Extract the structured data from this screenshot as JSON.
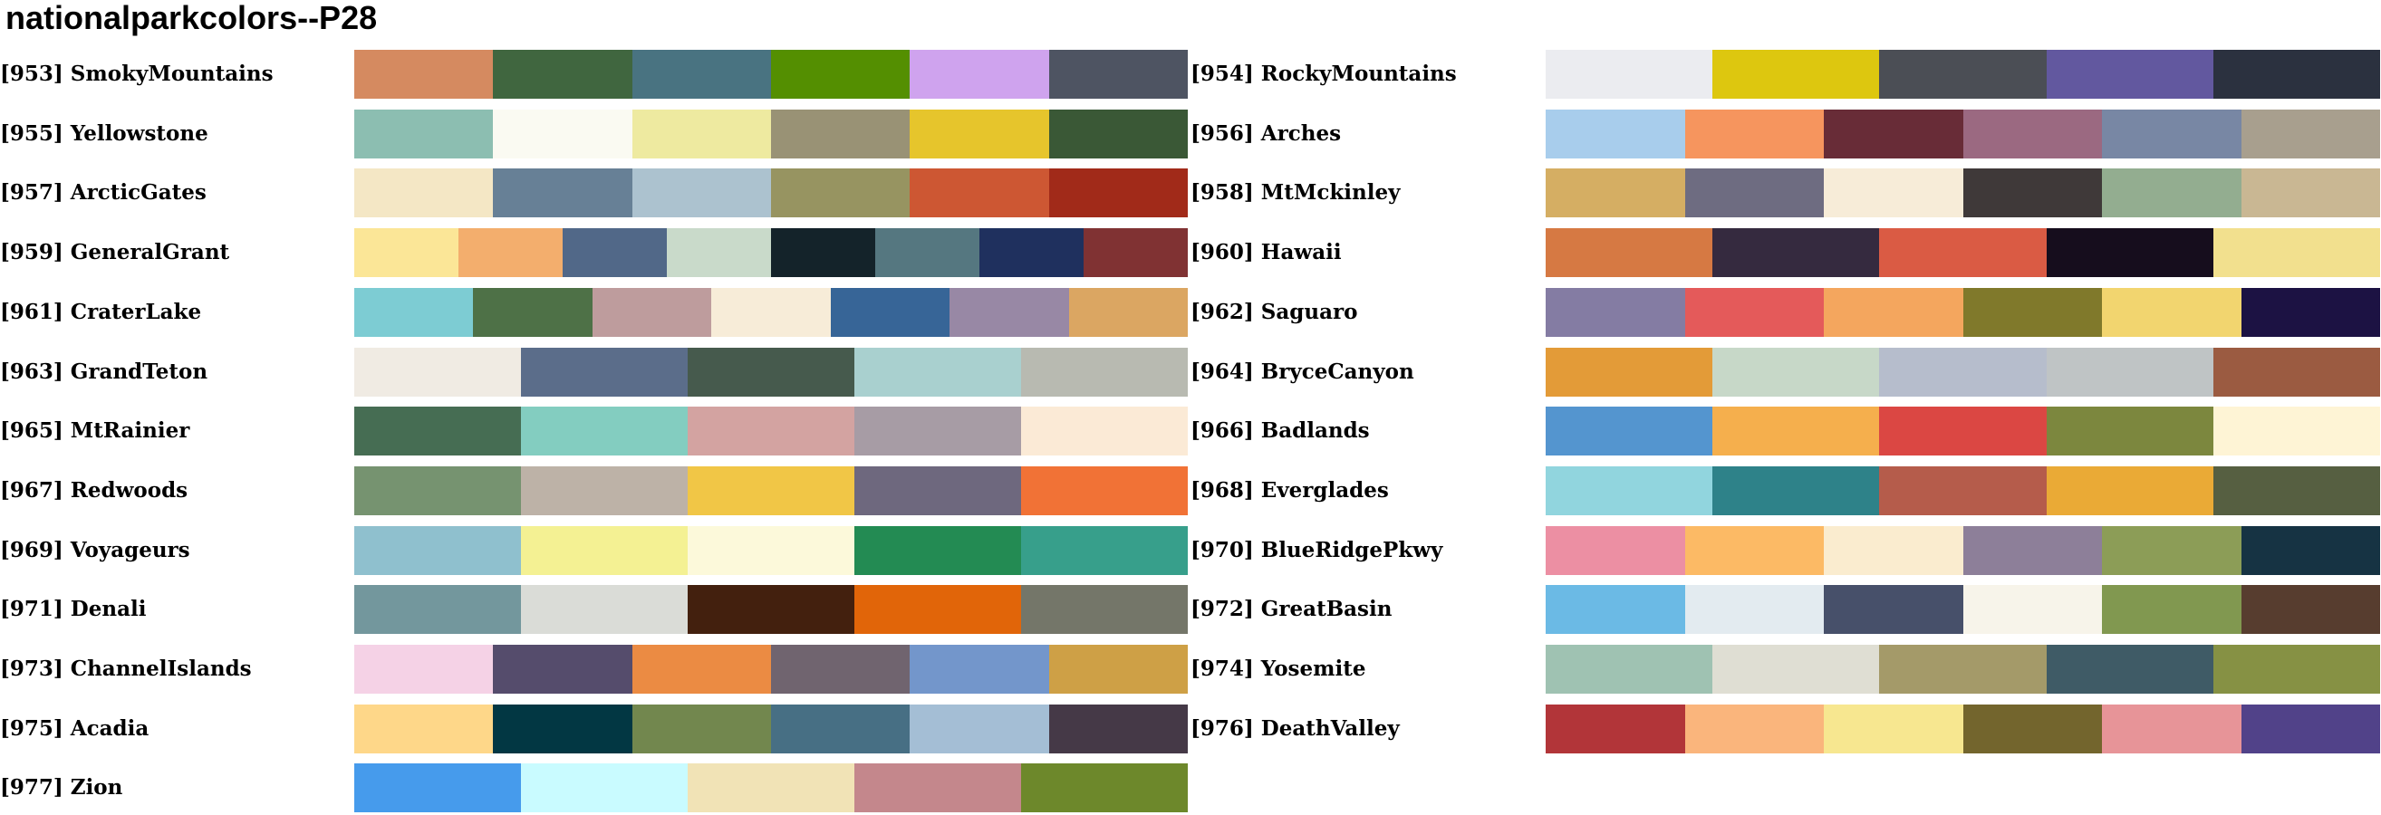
{
  "title": "nationalparkcolors--P28",
  "palettes": [
    {
      "label": "[953] SmokyMountains",
      "colors": [
        "#D58A60",
        "#40663F",
        "#497381",
        "#548F01",
        "#CFA3EE",
        "#4E5462"
      ]
    },
    {
      "label": "[954] RockyMountains",
      "colors": [
        "#EBECF0",
        "#DDC70F",
        "#4B4E55",
        "#62589F",
        "#2B313F"
      ]
    },
    {
      "label": "[955] Yellowstone",
      "colors": [
        "#8CBEB1",
        "#FAFAF2",
        "#EEEAA0",
        "#999275",
        "#E6C52C",
        "#3A5836"
      ]
    },
    {
      "label": "[956] Arches",
      "colors": [
        "#A8CDEC",
        "#F6955E",
        "#682C37",
        "#9B6981",
        "#7887A4",
        "#A89F8E"
      ]
    },
    {
      "label": "[957] ArcticGates",
      "colors": [
        "#F4E7C5",
        "#678096",
        "#ACC2CF",
        "#979461",
        "#CD5733",
        "#A12A19"
      ]
    },
    {
      "label": "[958] MtMckinley",
      "colors": [
        "#D5AE63",
        "#6E6C81",
        "#F7ECD8",
        "#3F3939",
        "#93AD90",
        "#C9B793"
      ]
    },
    {
      "label": "[959] GeneralGrant",
      "colors": [
        "#FBE697",
        "#F3AE6D",
        "#516888",
        "#C9DACA",
        "#14232A",
        "#557780",
        "#1F305E",
        "#803233"
      ]
    },
    {
      "label": "[960] Hawaii",
      "colors": [
        "#D67943",
        "#352A3F",
        "#DA5B44",
        "#160D1D",
        "#F2E08E"
      ]
    },
    {
      "label": "[961] CraterLake",
      "colors": [
        "#7DCCD3",
        "#4E7147",
        "#BE9C9D",
        "#F7ECD8",
        "#376597",
        "#9888A5",
        "#DBA662"
      ]
    },
    {
      "label": "[962] Saguaro",
      "colors": [
        "#847CA3",
        "#E45A5A",
        "#F4A65E",
        "#80792B",
        "#F2D56F",
        "#1C1243"
      ]
    },
    {
      "label": "[963] GrandTeton",
      "colors": [
        "#F0EBE3",
        "#5B6D8A",
        "#465A4D",
        "#A9D0CF",
        "#B8BAB1"
      ]
    },
    {
      "label": "[964] BryceCanyon",
      "colors": [
        "#E39B38",
        "#C7D8C8",
        "#B6BDCC",
        "#BFC4C5",
        "#9B5B41"
      ]
    },
    {
      "label": "[965] MtRainier",
      "colors": [
        "#466D53",
        "#83CDC0",
        "#D3A3A1",
        "#A79CA5",
        "#FBEAD6"
      ]
    },
    {
      "label": "[966] Badlands",
      "colors": [
        "#5495CF",
        "#F5AF4D",
        "#DB4743",
        "#7C873E",
        "#FEF4D5"
      ]
    },
    {
      "label": "[967] Redwoods",
      "colors": [
        "#769370",
        "#BDB2A7",
        "#F1C646",
        "#6E687E",
        "#F17236"
      ]
    },
    {
      "label": "[968] Everglades",
      "colors": [
        "#91D5DE",
        "#2E8289",
        "#B55C4B",
        "#EAAA36",
        "#565F41"
      ]
    },
    {
      "label": "[969] Voyageurs",
      "colors": [
        "#8FC0CE",
        "#F4F193",
        "#FCF9DA",
        "#238B53",
        "#379F8B"
      ]
    },
    {
      "label": "[970] BlueRidgePkwy",
      "colors": [
        "#EC8FA3",
        "#FCBA65",
        "#FAECCF",
        "#8D7F99",
        "#8C9D57",
        "#163343"
      ]
    },
    {
      "label": "[971] Denali",
      "colors": [
        "#73979D",
        "#DADCD7",
        "#43200E",
        "#E16509",
        "#747669"
      ]
    },
    {
      "label": "[972] GreatBasin",
      "colors": [
        "#6BBAE5",
        "#E3EBF0",
        "#47506A",
        "#F7F4EA",
        "#819850",
        "#573D2F"
      ]
    },
    {
      "label": "[973] ChannelIslands",
      "colors": [
        "#F5D2E6",
        "#554C6C",
        "#EB8B43",
        "#70646F",
        "#7396CB",
        "#CEA046"
      ]
    },
    {
      "label": "[974] Yosemite",
      "colors": [
        "#9FC2B2",
        "#DFDED3",
        "#A49A69",
        "#3F5B66",
        "#869144"
      ]
    },
    {
      "label": "[975] Acadia",
      "colors": [
        "#FED789",
        "#023743",
        "#72874E",
        "#476F84",
        "#A4BED5",
        "#453947"
      ]
    },
    {
      "label": "[976] DeathValley",
      "colors": [
        "#B23539",
        "#FAB57C",
        "#F7E790",
        "#73652D",
        "#E79498",
        "#514289"
      ]
    },
    {
      "label": "[977] Zion",
      "colors": [
        "#469BEC",
        "#C9FBFF",
        "#F1E3B6",
        "#C4878C",
        "#6D882B"
      ]
    }
  ]
}
